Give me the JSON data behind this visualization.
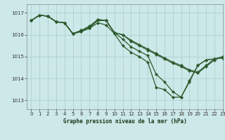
{
  "title": "Graphe pression niveau de la mer (hPa)",
  "bg_color": "#cce8e8",
  "grid_color": "#aacccc",
  "line_color": "#2d5a2d",
  "marker_color": "#2d5a2d",
  "xlim": [
    -0.5,
    23
  ],
  "ylim": [
    1012.6,
    1017.4
  ],
  "yticks": [
    1013,
    1014,
    1015,
    1016,
    1017
  ],
  "xticks": [
    0,
    1,
    2,
    3,
    4,
    5,
    6,
    7,
    8,
    9,
    10,
    11,
    12,
    13,
    14,
    15,
    16,
    17,
    18,
    19,
    20,
    21,
    22,
    23
  ],
  "series": [
    [
      1016.65,
      1016.9,
      1016.85,
      1016.6,
      1016.55,
      1016.05,
      1016.15,
      1016.3,
      1016.55,
      1016.45,
      1016.05,
      1015.5,
      1015.2,
      1015.0,
      1014.75,
      1013.6,
      1013.5,
      1013.15,
      1013.15,
      1013.85,
      1014.6,
      1014.85,
      1014.9,
      1014.95
    ],
    [
      1016.65,
      1016.9,
      1016.85,
      1016.6,
      1016.55,
      1016.05,
      1016.15,
      1016.3,
      1016.7,
      1016.65,
      1016.1,
      1015.8,
      1015.45,
      1015.25,
      1015.05,
      1014.2,
      1013.85,
      1013.4,
      1013.15,
      1013.9,
      1014.6,
      1014.85,
      1014.9,
      1014.95
    ],
    [
      1016.65,
      1016.9,
      1016.85,
      1016.6,
      1016.55,
      1016.05,
      1016.2,
      1016.35,
      1016.65,
      1016.65,
      1016.1,
      1016.0,
      1015.7,
      1015.5,
      1015.3,
      1015.1,
      1014.9,
      1014.7,
      1014.55,
      1014.35,
      1014.25,
      1014.55,
      1014.85,
      1015.0
    ],
    [
      1016.65,
      1016.9,
      1016.85,
      1016.6,
      1016.55,
      1016.05,
      1016.2,
      1016.4,
      1016.7,
      1016.65,
      1016.1,
      1016.0,
      1015.75,
      1015.55,
      1015.35,
      1015.15,
      1014.95,
      1014.75,
      1014.6,
      1014.4,
      1014.3,
      1014.6,
      1014.9,
      1015.0
    ]
  ]
}
